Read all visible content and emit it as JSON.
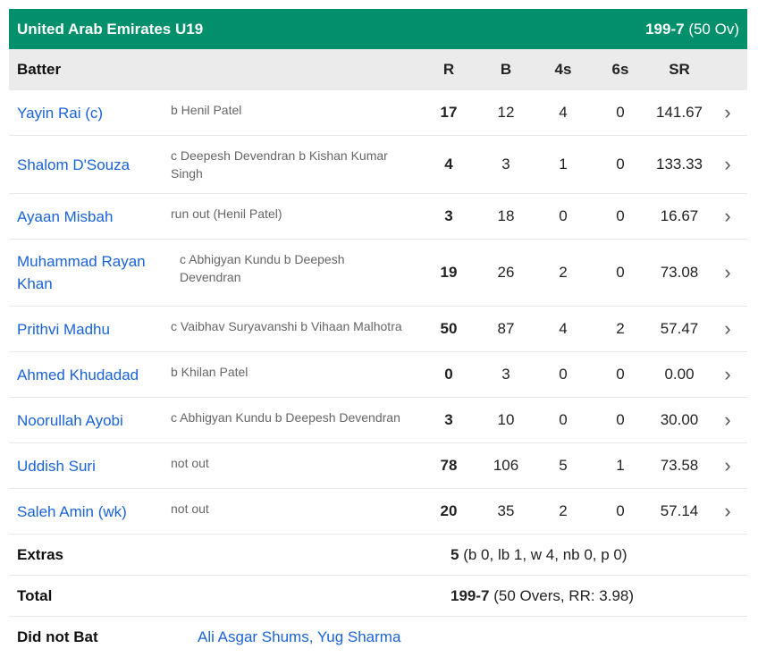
{
  "team": {
    "name": "United Arab Emirates U19",
    "score": "199-7",
    "overs": "(50 Ov)"
  },
  "columns": {
    "batter": "Batter",
    "r": "R",
    "b": "B",
    "fours": "4s",
    "sixes": "6s",
    "sr": "SR"
  },
  "batters": [
    {
      "name": "Yayin Rai (c)",
      "dismissal": "b Henil Patel",
      "r": "17",
      "b": "12",
      "fours": "4",
      "sixes": "0",
      "sr": "141.67"
    },
    {
      "name": "Shalom D'Souza",
      "dismissal": "c Deepesh Devendran b Kishan Kumar Singh",
      "r": "4",
      "b": "3",
      "fours": "1",
      "sixes": "0",
      "sr": "133.33"
    },
    {
      "name": "Ayaan Misbah",
      "dismissal": "run out (Henil Patel)",
      "r": "3",
      "b": "18",
      "fours": "0",
      "sixes": "0",
      "sr": "16.67"
    },
    {
      "name": "Muhammad Rayan Khan",
      "dismissal": "c Abhigyan Kundu b Deepesh Devendran",
      "r": "19",
      "b": "26",
      "fours": "2",
      "sixes": "0",
      "sr": "73.08"
    },
    {
      "name": "Prithvi Madhu",
      "dismissal": "c Vaibhav Suryavanshi b Vihaan Malhotra",
      "r": "50",
      "b": "87",
      "fours": "4",
      "sixes": "2",
      "sr": "57.47"
    },
    {
      "name": "Ahmed Khudadad",
      "dismissal": "b Khilan Patel",
      "r": "0",
      "b": "3",
      "fours": "0",
      "sixes": "0",
      "sr": "0.00"
    },
    {
      "name": "Noorullah Ayobi",
      "dismissal": "c Abhigyan Kundu b Deepesh Devendran",
      "r": "3",
      "b": "10",
      "fours": "0",
      "sixes": "0",
      "sr": "30.00"
    },
    {
      "name": "Uddish Suri",
      "dismissal": "not out",
      "r": "78",
      "b": "106",
      "fours": "5",
      "sixes": "1",
      "sr": "73.58"
    },
    {
      "name": "Saleh Amin (wk)",
      "dismissal": "not out",
      "r": "20",
      "b": "35",
      "fours": "2",
      "sixes": "0",
      "sr": "57.14"
    }
  ],
  "extras": {
    "label": "Extras",
    "value": "5",
    "detail": "(b 0, lb 1, w 4, nb 0, p 0)"
  },
  "total": {
    "label": "Total",
    "value": "199-7",
    "detail": "(50 Overs, RR: 3.98)"
  },
  "did_not_bat": {
    "label": "Did not Bat",
    "players": "Ali Asgar Shums, Yug Sharma"
  },
  "colors": {
    "header": "#01906b",
    "link": "#1a63d8"
  }
}
